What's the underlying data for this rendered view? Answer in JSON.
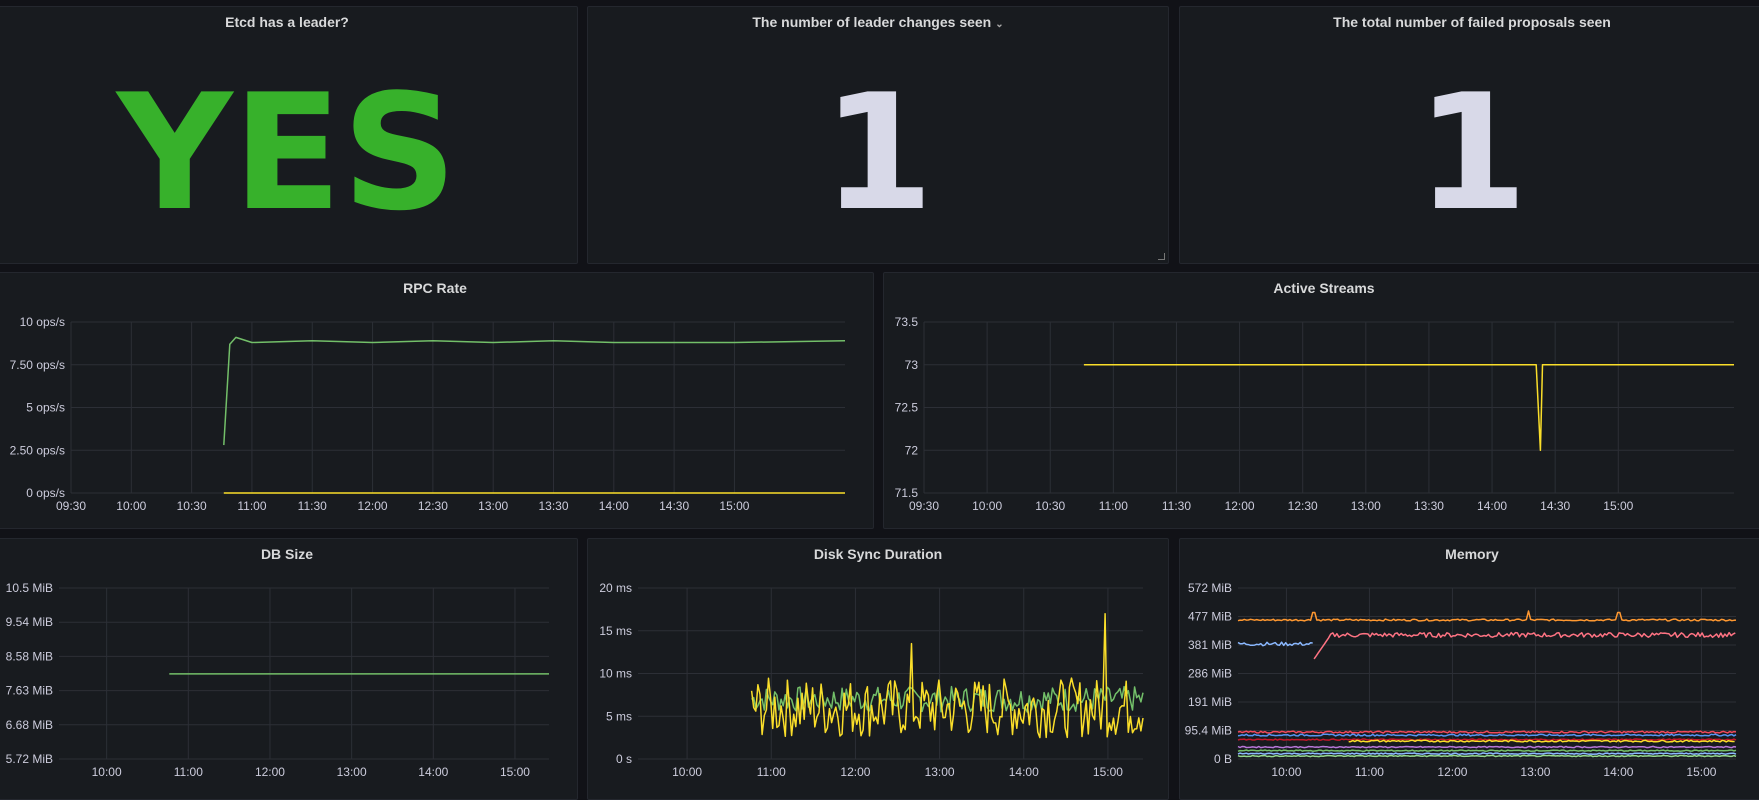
{
  "panels": {
    "leader": {
      "title": "Etcd has a leader?",
      "value": "YES",
      "color": "#37b12b"
    },
    "leader_changes": {
      "title": "The number of leader changes seen",
      "value": "1",
      "color": "#d8d9e8"
    },
    "failed_proposals": {
      "title": "The total number of failed proposals seen",
      "value": "1",
      "color": "#d8d9e8"
    },
    "rpc_rate": {
      "title": "RPC Rate"
    },
    "active_streams": {
      "title": "Active Streams"
    },
    "db_size": {
      "title": "DB Size"
    },
    "disk_sync": {
      "title": "Disk Sync Duration"
    },
    "memory": {
      "title": "Memory"
    }
  },
  "chart_data": [
    {
      "id": "rpc_rate",
      "type": "line",
      "x_ticks": [
        "09:30",
        "10:00",
        "10:30",
        "11:00",
        "11:30",
        "12:00",
        "12:30",
        "13:00",
        "13:30",
        "14:00",
        "14:30",
        "15:00"
      ],
      "x_range": [
        "09:30",
        "15:55"
      ],
      "y_ticks": [
        "10 ops/s",
        "7.50 ops/s",
        "5 ops/s",
        "2.50 ops/s",
        "0 ops/s"
      ],
      "ylim": [
        0,
        10
      ],
      "series": [
        {
          "color": "#73bf69",
          "points": [
            [
              "10:46",
              2.8
            ],
            [
              "10:49",
              8.7
            ],
            [
              "10:52",
              9.1
            ],
            [
              "11:00",
              8.8
            ],
            [
              "11:30",
              8.9
            ],
            [
              "12:00",
              8.8
            ],
            [
              "12:30",
              8.9
            ],
            [
              "13:00",
              8.8
            ],
            [
              "13:30",
              8.9
            ],
            [
              "14:00",
              8.8
            ],
            [
              "14:30",
              8.8
            ],
            [
              "15:00",
              8.8
            ],
            [
              "15:55",
              8.9
            ]
          ]
        },
        {
          "color": "#fade2a",
          "points": [
            [
              "10:46",
              0
            ],
            [
              "15:55",
              0
            ]
          ]
        }
      ]
    },
    {
      "id": "active_streams",
      "type": "line",
      "x_ticks": [
        "09:30",
        "10:00",
        "10:30",
        "11:00",
        "11:30",
        "12:00",
        "12:30",
        "13:00",
        "13:30",
        "14:00",
        "14:30",
        "15:00"
      ],
      "x_range": [
        "09:30",
        "15:55"
      ],
      "y_ticks": [
        "73.5",
        "73",
        "72.5",
        "72",
        "71.5"
      ],
      "ylim": [
        71.5,
        73.5
      ],
      "series": [
        {
          "color": "#fade2a",
          "points": [
            [
              "10:46",
              73
            ],
            [
              "14:21",
              73
            ],
            [
              "14:23",
              72
            ],
            [
              "14:24",
              73
            ],
            [
              "15:55",
              73
            ]
          ]
        }
      ]
    },
    {
      "id": "db_size",
      "type": "line",
      "x_ticks": [
        "10:00",
        "11:00",
        "12:00",
        "13:00",
        "14:00",
        "15:00"
      ],
      "x_range": [
        "09:25",
        "15:25"
      ],
      "y_ticks": [
        "10.5 MiB",
        "9.54 MiB",
        "8.58 MiB",
        "7.63 MiB",
        "6.68 MiB",
        "5.72 MiB"
      ],
      "ylim": [
        5.72,
        10.5
      ],
      "series": [
        {
          "color": "#73bf69",
          "points": [
            [
              "10:46",
              8.1
            ],
            [
              "15:25",
              8.1
            ]
          ]
        }
      ]
    },
    {
      "id": "disk_sync",
      "type": "line",
      "x_ticks": [
        "10:00",
        "11:00",
        "12:00",
        "13:00",
        "14:00",
        "15:00"
      ],
      "x_range": [
        "09:25",
        "15:25"
      ],
      "y_ticks": [
        "20 ms",
        "15 ms",
        "10 ms",
        "5 ms",
        "0 s"
      ],
      "ylim": [
        0,
        20
      ],
      "series": [
        {
          "color": "#73bf69",
          "style": "noisy",
          "base": 7,
          "amp": 1.5,
          "from": "10:46",
          "to": "15:25"
        },
        {
          "color": "#fade2a",
          "style": "noisy",
          "base": 6,
          "amp": 3.5,
          "from": "10:46",
          "to": "15:25",
          "spikes": [
            [
              "12:40",
              13.5
            ],
            [
              "14:58",
              17
            ]
          ]
        }
      ]
    },
    {
      "id": "memory",
      "type": "line",
      "x_ticks": [
        "10:00",
        "11:00",
        "12:00",
        "13:00",
        "14:00",
        "15:00"
      ],
      "x_range": [
        "09:25",
        "15:25"
      ],
      "y_ticks": [
        "572 MiB",
        "477 MiB",
        "381 MiB",
        "286 MiB",
        "191 MiB",
        "95.4 MiB",
        "0 B"
      ],
      "ylim": [
        0,
        572
      ],
      "series": [
        {
          "color": "#ff9830",
          "style": "noisy",
          "base": 465,
          "amp": 3,
          "from": "09:25",
          "to": "15:25",
          "spikes": [
            [
              "10:20",
              490
            ],
            [
              "12:55",
              495
            ],
            [
              "14:00",
              490
            ]
          ]
        },
        {
          "color": "#8ab8ff",
          "style": "noisy",
          "base": 385,
          "amp": 6,
          "from": "09:25",
          "to": "10:20"
        },
        {
          "color": "#ff7383",
          "style": "noisy",
          "base": 415,
          "amp": 8,
          "from": "10:20",
          "to": "15:25",
          "rise_from": 335
        },
        {
          "color": "#f2495c",
          "style": "noisy",
          "base": 90,
          "amp": 3,
          "from": "09:25",
          "to": "15:25"
        },
        {
          "color": "#5794f2",
          "style": "noisy",
          "base": 80,
          "amp": 3,
          "from": "09:25",
          "to": "15:25"
        },
        {
          "color": "#c4162a",
          "style": "noisy",
          "base": 65,
          "amp": 2,
          "from": "09:25",
          "to": "15:25"
        },
        {
          "color": "#fade2a",
          "style": "noisy",
          "base": 60,
          "amp": 3,
          "from": "10:45",
          "to": "15:25"
        },
        {
          "color": "#b877d9",
          "style": "noisy",
          "base": 40,
          "amp": 2,
          "from": "09:25",
          "to": "15:25"
        },
        {
          "color": "#73bf69",
          "style": "noisy",
          "base": 28,
          "amp": 2,
          "from": "09:25",
          "to": "15:25"
        },
        {
          "color": "#8ab8ff",
          "style": "noisy",
          "base": 18,
          "amp": 2,
          "from": "09:25",
          "to": "15:25"
        },
        {
          "color": "#96d98d",
          "style": "noisy",
          "base": 10,
          "amp": 2,
          "from": "09:25",
          "to": "15:25"
        }
      ]
    }
  ]
}
